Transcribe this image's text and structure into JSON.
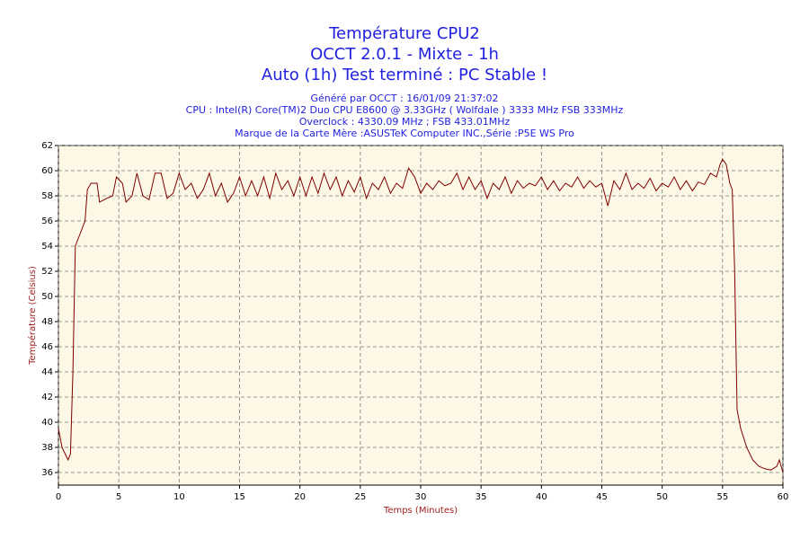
{
  "chart_data": {
    "type": "line",
    "title": [
      "Température CPU2",
      "OCCT 2.0.1 - Mixte - 1h",
      "Auto (1h) Test terminé : PC Stable !"
    ],
    "subtitle": [
      "Généré par OCCT : 16/01/09 21:37:02",
      "CPU : Intel(R) Core(TM)2 Duo CPU E8600 @ 3.33GHz ( Wolfdale ) 3333 MHz FSB 333MHz",
      "Overclock : 4330.09 MHz ; FSB 433.01MHz",
      "Marque de la Carte Mère :ASUSTeK Computer INC.,Série :P5E WS Pro"
    ],
    "x_label": "Temps (Minutes)",
    "y_label": "Température (Celsius)",
    "x": [
      0,
      0.3,
      0.8,
      1.0,
      1.2,
      1.4,
      1.8,
      2.2,
      2.4,
      2.7,
      3.2,
      3.4,
      4,
      4.5,
      4.8,
      5.3,
      5.6,
      6.1,
      6.5,
      7.0,
      7.5,
      8.0,
      8.5,
      9.0,
      9.5,
      10.0,
      10.5,
      11.0,
      11.5,
      12.0,
      12.5,
      13.0,
      13.5,
      14.0,
      14.5,
      15.0,
      15.5,
      16.0,
      16.5,
      17.0,
      17.5,
      18.0,
      18.5,
      19.0,
      19.5,
      20.0,
      20.5,
      21.0,
      21.5,
      22.0,
      22.5,
      23.0,
      23.5,
      24.0,
      24.5,
      25.0,
      25.5,
      26.0,
      26.5,
      27.0,
      27.5,
      28.0,
      28.5,
      29.0,
      29.5,
      30.0,
      30.5,
      31.0,
      31.5,
      32.0,
      32.5,
      33.0,
      33.5,
      34.0,
      34.5,
      35.0,
      35.5,
      36.0,
      36.5,
      37.0,
      37.5,
      38.0,
      38.5,
      39.0,
      39.5,
      40.0,
      40.5,
      41.0,
      41.5,
      42.0,
      42.5,
      43.0,
      43.5,
      44.0,
      44.5,
      45.0,
      45.5,
      46.0,
      46.5,
      47.0,
      47.5,
      48.0,
      48.5,
      49.0,
      49.5,
      50.0,
      50.5,
      51.0,
      51.5,
      52.0,
      52.5,
      53.0,
      53.5,
      54.0,
      54.5,
      54.8,
      55.0,
      55.3,
      55.6,
      55.8,
      56.0,
      56.2,
      56.5,
      57.0,
      57.5,
      58.0,
      58.5,
      59.0,
      59.5,
      59.7,
      60
    ],
    "series": [
      {
        "color": "#800000",
        "values": [
          39.5,
          38,
          37,
          37.5,
          44,
          54,
          55,
          56,
          58.5,
          59,
          59,
          57.5,
          57.8,
          58,
          59.5,
          59,
          57.5,
          58,
          59.8,
          58,
          57.7,
          59.8,
          59.8,
          57.8,
          58.2,
          59.8,
          58.5,
          59,
          57.8,
          58.5,
          59.8,
          58,
          59,
          57.5,
          58.2,
          59.5,
          58,
          59.2,
          58,
          59.5,
          57.8,
          59.8,
          58.5,
          59.2,
          58,
          59.5,
          58,
          59.5,
          58.2,
          59.8,
          58.5,
          59.5,
          58,
          59.2,
          58.3,
          59.5,
          57.8,
          59,
          58.5,
          59.5,
          58.2,
          59,
          58.6,
          60.2,
          59.5,
          58.2,
          59,
          58.5,
          59.2,
          58.8,
          59,
          59.8,
          58.5,
          59.5,
          58.5,
          59.2,
          57.8,
          59,
          58.5,
          59.5,
          58.2,
          59.2,
          58.6,
          59,
          58.8,
          59.5,
          58.5,
          59.2,
          58.4,
          59,
          58.7,
          59.5,
          58.6,
          59.2,
          58.7,
          59,
          57.2,
          59.2,
          58.5,
          59.8,
          58.5,
          59,
          58.6,
          59.4,
          58.4,
          59,
          58.7,
          59.5,
          58.5,
          59.2,
          58.4,
          59.1,
          58.9,
          59.8,
          59.5,
          60.5,
          60.9,
          60.5,
          59,
          58.5,
          52,
          41,
          39.5,
          38,
          37,
          36.5,
          36.3,
          36.2,
          36.5,
          37,
          36
        ]
      }
    ],
    "xlim": [
      0,
      60
    ],
    "ylim": [
      35,
      62
    ],
    "xticks": [
      0,
      5,
      10,
      15,
      20,
      25,
      30,
      35,
      40,
      45,
      50,
      55,
      60
    ],
    "yticks": [
      36,
      38,
      40,
      42,
      44,
      46,
      48,
      50,
      52,
      54,
      56,
      58,
      60,
      62
    ],
    "grid": true
  }
}
